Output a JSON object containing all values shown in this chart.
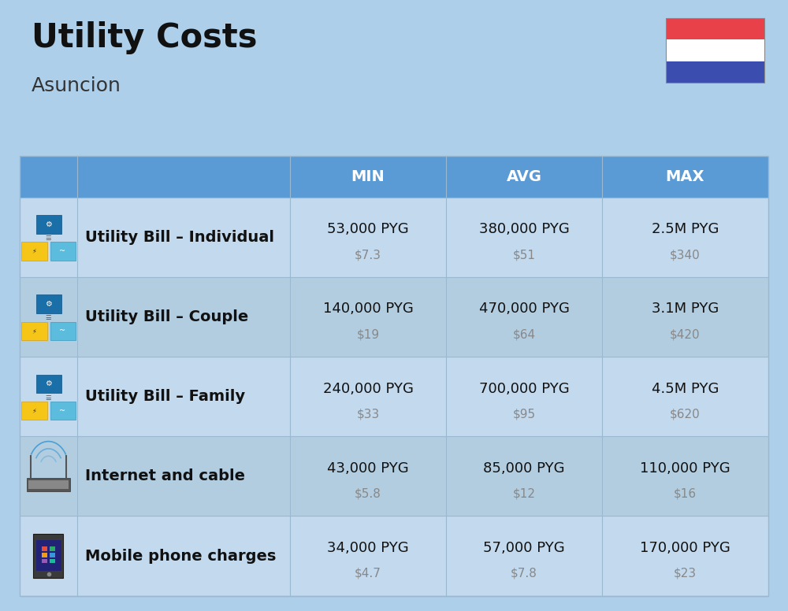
{
  "title": "Utility Costs",
  "subtitle": "Asuncion",
  "background_color": "#aecfea",
  "header_bg_color": "#5b9bd5",
  "header_text_color": "#ffffff",
  "row_bg_color_even": "#c2d9ee",
  "row_bg_color_odd": "#b3cde0",
  "divider_color": "#9ab8d0",
  "col_headers": [
    "MIN",
    "AVG",
    "MAX"
  ],
  "rows": [
    {
      "label": "Utility Bill – Individual",
      "min_pyg": "53,000 PYG",
      "min_usd": "$7.3",
      "avg_pyg": "380,000 PYG",
      "avg_usd": "$51",
      "max_pyg": "2.5M PYG",
      "max_usd": "$340"
    },
    {
      "label": "Utility Bill – Couple",
      "min_pyg": "140,000 PYG",
      "min_usd": "$19",
      "avg_pyg": "470,000 PYG",
      "avg_usd": "$64",
      "max_pyg": "3.1M PYG",
      "max_usd": "$420"
    },
    {
      "label": "Utility Bill – Family",
      "min_pyg": "240,000 PYG",
      "min_usd": "$33",
      "avg_pyg": "700,000 PYG",
      "avg_usd": "$95",
      "max_pyg": "4.5M PYG",
      "max_usd": "$620"
    },
    {
      "label": "Internet and cable",
      "min_pyg": "43,000 PYG",
      "min_usd": "$5.8",
      "avg_pyg": "85,000 PYG",
      "avg_usd": "$12",
      "max_pyg": "110,000 PYG",
      "max_usd": "$16"
    },
    {
      "label": "Mobile phone charges",
      "min_pyg": "34,000 PYG",
      "min_usd": "$4.7",
      "avg_pyg": "57,000 PYG",
      "avg_usd": "$7.8",
      "max_pyg": "170,000 PYG",
      "max_usd": "$23"
    }
  ],
  "flag_colors": [
    "#e8414a",
    "#ffffff",
    "#3b4eaf"
  ],
  "title_fontsize": 30,
  "subtitle_fontsize": 18,
  "header_fontsize": 14,
  "label_fontsize": 14,
  "value_fontsize": 13,
  "usd_fontsize": 11
}
